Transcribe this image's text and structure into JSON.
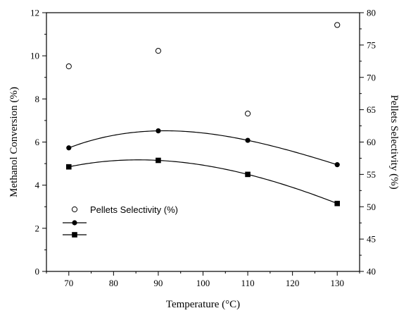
{
  "chart_data": {
    "type": "scatter",
    "xlabel": "Temperature (°C)",
    "ylabel_left": "Methanol Conversion (%)",
    "ylabel_right": "Pellets Selectivity (%)",
    "xlim": [
      65,
      135
    ],
    "xticks": [
      70,
      80,
      90,
      100,
      110,
      120,
      130
    ],
    "ylim_left": [
      0,
      12
    ],
    "yticks_left": [
      0,
      2,
      4,
      6,
      8,
      10,
      12
    ],
    "ylim_right": [
      40,
      80
    ],
    "yticks_right": [
      40,
      45,
      50,
      55,
      60,
      65,
      70,
      75,
      80
    ],
    "grid": false,
    "legend_position": "lower-left",
    "series": [
      {
        "name": "Pellets Selectivity (%)",
        "axis": "right",
        "marker": "open-circle",
        "line": false,
        "x": [
          70,
          90,
          110,
          130
        ],
        "y": [
          71.7,
          74.1,
          64.4,
          78.1
        ]
      },
      {
        "axis": "left",
        "marker": "filled-circle",
        "line": true,
        "x": [
          70,
          90,
          110,
          130
        ],
        "y": [
          5.73,
          6.52,
          6.08,
          4.95
        ]
      },
      {
        "axis": "left",
        "marker": "filled-square",
        "line": true,
        "x": [
          70,
          90,
          110,
          130
        ],
        "y": [
          4.85,
          5.15,
          4.5,
          3.15
        ]
      }
    ]
  }
}
